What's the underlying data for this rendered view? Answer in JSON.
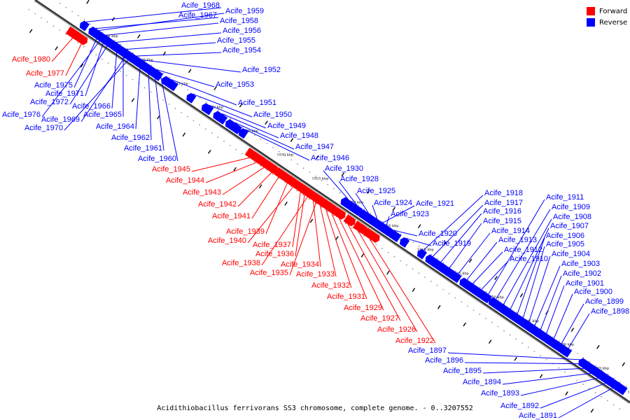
{
  "legend": {
    "forward_label": "Forward",
    "reverse_label": "Reverse",
    "forward_color": "#ff0000",
    "reverse_color": "#0000ff"
  },
  "caption": "Acidithiobacillus ferrivorans SS3 chromosome, complete genome. - 0..3207552",
  "ticks": [
    "1955 kbp",
    "1950 kbp",
    "1945 kbp",
    "1940 kbp",
    "1935 kbp",
    "1930 kbp",
    "1925 kbp",
    "1920 kbp",
    "1915 kbp",
    "1910 kbp",
    "1905 kbp",
    "1900 kbp",
    "1895 kbp",
    "1890 kbp",
    "1885 kbp",
    "1880 kbp"
  ],
  "genes": [
    {
      "label": "Acife_1968",
      "strand": "reverse"
    },
    {
      "label": "Acife_1967",
      "strand": "reverse"
    },
    {
      "label": "Acife_1959",
      "strand": "reverse"
    },
    {
      "label": "Acife_1958",
      "strand": "reverse"
    },
    {
      "label": "Acife_1956",
      "strand": "reverse"
    },
    {
      "label": "Acife_1955",
      "strand": "reverse"
    },
    {
      "label": "Acife_1954",
      "strand": "reverse"
    },
    {
      "label": "Acife_1980",
      "strand": "forward"
    },
    {
      "label": "Acife_1977",
      "strand": "forward"
    },
    {
      "label": "Acife_1975",
      "strand": "reverse"
    },
    {
      "label": "Acife_1971",
      "strand": "reverse"
    },
    {
      "label": "Acife_1972",
      "strand": "reverse"
    },
    {
      "label": "Acife_1966",
      "strand": "reverse"
    },
    {
      "label": "Acife_1976",
      "strand": "reverse"
    },
    {
      "label": "Acife_1965",
      "strand": "reverse"
    },
    {
      "label": "Acife_1969",
      "strand": "reverse"
    },
    {
      "label": "Acife_1970",
      "strand": "reverse"
    },
    {
      "label": "Acife_1964",
      "strand": "reverse"
    },
    {
      "label": "Acife_1962",
      "strand": "reverse"
    },
    {
      "label": "Acife_1961",
      "strand": "reverse"
    },
    {
      "label": "Acife_1960",
      "strand": "reverse"
    },
    {
      "label": "Acife_1952",
      "strand": "reverse"
    },
    {
      "label": "Acife_1953",
      "strand": "reverse"
    },
    {
      "label": "Acife_1951",
      "strand": "reverse"
    },
    {
      "label": "Acife_1950",
      "strand": "reverse"
    },
    {
      "label": "Acife_1949",
      "strand": "reverse"
    },
    {
      "label": "Acife_1948",
      "strand": "reverse"
    },
    {
      "label": "Acife_1947",
      "strand": "reverse"
    },
    {
      "label": "Acife_1946",
      "strand": "reverse"
    },
    {
      "label": "Acife_1930",
      "strand": "reverse"
    },
    {
      "label": "Acife_1928",
      "strand": "reverse"
    },
    {
      "label": "Acife_1925",
      "strand": "reverse"
    },
    {
      "label": "Acife_1924",
      "strand": "reverse"
    },
    {
      "label": "Acife_1921",
      "strand": "reverse"
    },
    {
      "label": "Acife_1923",
      "strand": "reverse"
    },
    {
      "label": "Acife_1920",
      "strand": "reverse"
    },
    {
      "label": "Acife_1919",
      "strand": "reverse"
    },
    {
      "label": "Acife_1945",
      "strand": "forward"
    },
    {
      "label": "Acife_1944",
      "strand": "forward"
    },
    {
      "label": "Acife_1943",
      "strand": "forward"
    },
    {
      "label": "Acife_1942",
      "strand": "forward"
    },
    {
      "label": "Acife_1941",
      "strand": "forward"
    },
    {
      "label": "Acife_1939",
      "strand": "forward"
    },
    {
      "label": "Acife_1940",
      "strand": "forward"
    },
    {
      "label": "Acife_1937",
      "strand": "forward"
    },
    {
      "label": "Acife_1936",
      "strand": "forward"
    },
    {
      "label": "Acife_1938",
      "strand": "forward"
    },
    {
      "label": "Acife_1934",
      "strand": "forward"
    },
    {
      "label": "Acife_1935",
      "strand": "forward"
    },
    {
      "label": "Acife_1933",
      "strand": "forward"
    },
    {
      "label": "Acife_1932",
      "strand": "forward"
    },
    {
      "label": "Acife_1931",
      "strand": "forward"
    },
    {
      "label": "Acife_1929",
      "strand": "forward"
    },
    {
      "label": "Acife_1927",
      "strand": "forward"
    },
    {
      "label": "Acife_1926",
      "strand": "forward"
    },
    {
      "label": "Acife_1922",
      "strand": "forward"
    },
    {
      "label": "Acife_1918",
      "strand": "reverse"
    },
    {
      "label": "Acife_1917",
      "strand": "reverse"
    },
    {
      "label": "Acife_1916",
      "strand": "reverse"
    },
    {
      "label": "Acife_1915",
      "strand": "reverse"
    },
    {
      "label": "Acife_1914",
      "strand": "reverse"
    },
    {
      "label": "Acife_1913",
      "strand": "reverse"
    },
    {
      "label": "Acife_1912",
      "strand": "reverse"
    },
    {
      "label": "Acife_1910",
      "strand": "reverse"
    },
    {
      "label": "Acife_1911",
      "strand": "reverse"
    },
    {
      "label": "Acife_1909",
      "strand": "reverse"
    },
    {
      "label": "Acife_1908",
      "strand": "reverse"
    },
    {
      "label": "Acife_1907",
      "strand": "reverse"
    },
    {
      "label": "Acife_1906",
      "strand": "reverse"
    },
    {
      "label": "Acife_1905",
      "strand": "reverse"
    },
    {
      "label": "Acife_1904",
      "strand": "reverse"
    },
    {
      "label": "Acife_1903",
      "strand": "reverse"
    },
    {
      "label": "Acife_1902",
      "strand": "reverse"
    },
    {
      "label": "Acife_1901",
      "strand": "reverse"
    },
    {
      "label": "Acife_1900",
      "strand": "reverse"
    },
    {
      "label": "Acife_1899",
      "strand": "reverse"
    },
    {
      "label": "Acife_1898",
      "strand": "reverse"
    },
    {
      "label": "Acife_1897",
      "strand": "reverse"
    },
    {
      "label": "Acife_1896",
      "strand": "reverse"
    },
    {
      "label": "Acife_1895",
      "strand": "reverse"
    },
    {
      "label": "Acife_1894",
      "strand": "reverse"
    },
    {
      "label": "Acife_1893",
      "strand": "reverse"
    },
    {
      "label": "Acife_1892",
      "strand": "reverse"
    },
    {
      "label": "Acife_1891",
      "strand": "reverse"
    }
  ]
}
